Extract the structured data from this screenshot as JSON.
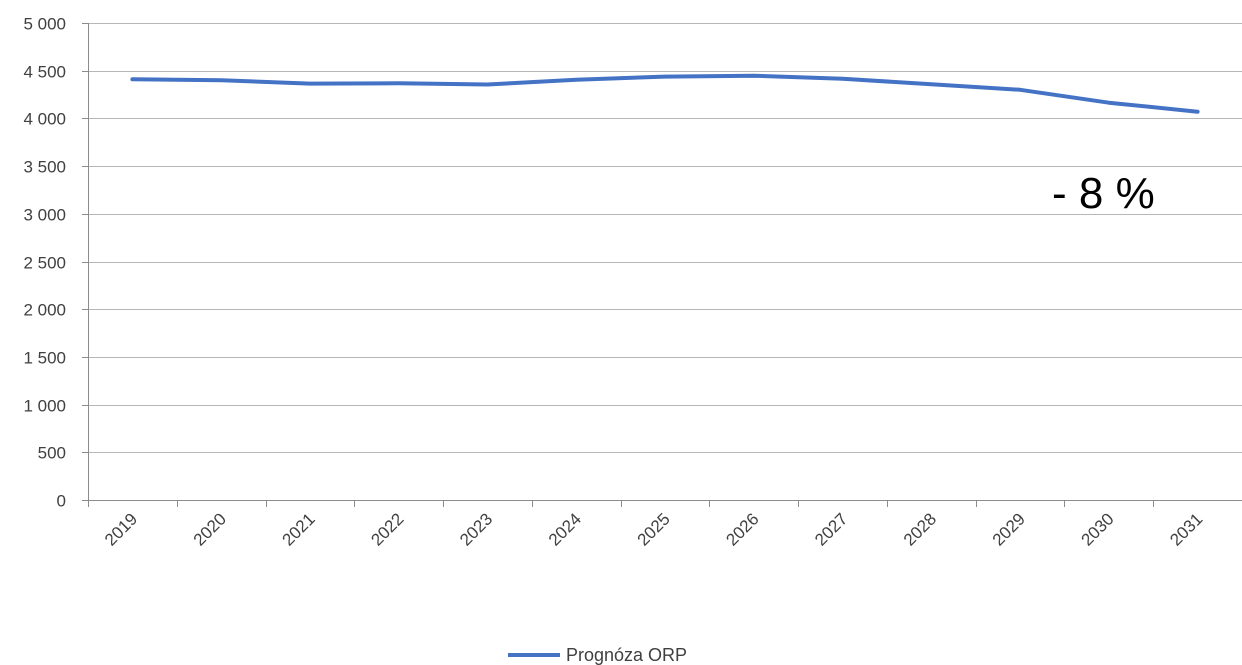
{
  "chart_data": {
    "type": "line",
    "title": "",
    "xlabel": "",
    "ylabel": "",
    "categories": [
      "2019",
      "2020",
      "2021",
      "2022",
      "2023",
      "2024",
      "2025",
      "2026",
      "2027",
      "2028",
      "2029",
      "2030",
      "2031"
    ],
    "series": [
      {
        "name": "Prognóza ORP",
        "values": [
          4410,
          4400,
          4365,
          4368,
          4355,
          4405,
          4438,
          4448,
          4415,
          4358,
          4300,
          4165,
          4070
        ],
        "color": "#4472C4"
      }
    ],
    "ylim": [
      0,
      5000
    ],
    "ytick_values": [
      0,
      500,
      1000,
      1500,
      2000,
      2500,
      3000,
      3500,
      4000,
      4500,
      5000
    ],
    "ytick_labels": [
      "0",
      "500",
      "1 000",
      "1 500",
      "2 000",
      "2 500",
      "3 000",
      "3 500",
      "4 000",
      "4 500",
      "5 000"
    ],
    "grid": true,
    "legend_position": "bottom",
    "annotation": "- 8 %",
    "colors": {
      "gridline": "#b7b7b7",
      "axis": "#8c8c8c",
      "text": "#404040"
    }
  }
}
